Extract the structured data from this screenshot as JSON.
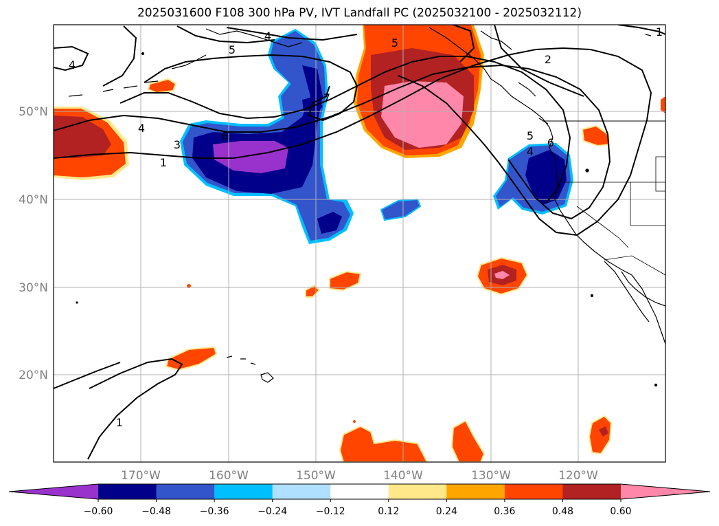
{
  "title": "2025031600 F108 300 hPa PV, IVT Landfall PC (2025032100 - 2025032112)",
  "lat_labels": [
    "50°N",
    "40°N",
    "30°N",
    "20°N"
  ],
  "lon_labels": [
    "170°W",
    "160°W",
    "150°W",
    "140°W",
    "130°W",
    "120°W"
  ],
  "colorbar": {
    "ticks": [
      "−0.60",
      "−0.48",
      "−0.36",
      "−0.24",
      "−0.12",
      "0.12",
      "0.24",
      "0.36",
      "0.48",
      "0.60"
    ],
    "colors": [
      "#9932cc",
      "#00008b",
      "#3355cc",
      "#00bfff",
      "#b0e0ff",
      "#ffffff",
      "#ffe88a",
      "#ffa500",
      "#ff4500",
      "#b22222",
      "#ff88aa"
    ],
    "extend": "both"
  },
  "contour_labels": [
    "4",
    "5",
    "4",
    "4",
    "3",
    "1",
    "6",
    "7",
    "5",
    "1",
    "2",
    "5",
    "6",
    "4",
    "1"
  ]
}
